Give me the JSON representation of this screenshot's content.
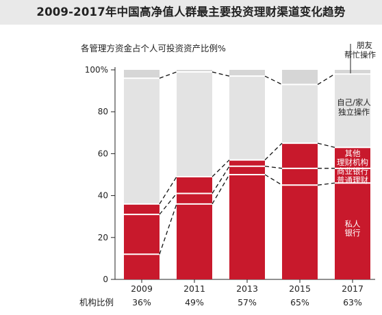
{
  "title": "2009-2017年中国高净值人群最主要投资理财渠道变化趋势",
  "subtitle": "各管理方资金占个人可投资资产比例%",
  "colors": {
    "institution": "#c8192c",
    "self": "#e3e3e3",
    "friends": "#d6d6d6",
    "divider": "#ffffff"
  },
  "chart_data": {
    "type": "bar",
    "stacked": true,
    "categories": [
      "2009",
      "2011",
      "2013",
      "2015",
      "2017"
    ],
    "ylim": [
      0,
      100
    ],
    "yticks": [
      "0",
      "20",
      "40",
      "60",
      "80",
      "100%"
    ],
    "series": [
      {
        "name": "私人银行",
        "values": [
          12,
          36,
          50,
          45,
          46
        ]
      },
      {
        "name": "商业银行普通理财",
        "values": [
          19,
          5,
          4,
          8,
          7
        ]
      },
      {
        "name": "其他理财机构",
        "values": [
          5,
          8,
          3,
          12,
          10
        ]
      },
      {
        "name": "自己/家人独立操作",
        "values": [
          60,
          50,
          40,
          28,
          35
        ]
      },
      {
        "name": "朋友帮忙操作",
        "values": [
          4,
          1,
          3,
          7,
          2
        ]
      }
    ],
    "footer_label": "机构比例",
    "footer_values": [
      "36%",
      "49%",
      "57%",
      "65%",
      "63%"
    ]
  }
}
